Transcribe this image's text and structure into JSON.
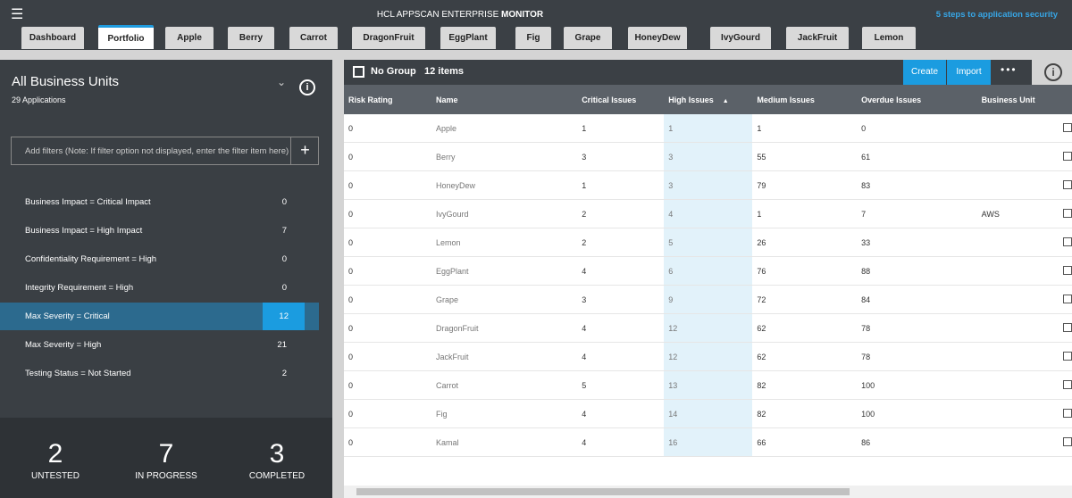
{
  "header": {
    "title": "HCL APPSCAN ENTERPRISE",
    "title_bold": "MONITOR",
    "link": "5 steps to application security"
  },
  "tabs": [
    "Dashboard",
    "Portfolio",
    "Apple",
    "Berry",
    "Carrot",
    "DragonFruit",
    "EggPlant",
    "Fig",
    "Grape",
    "HoneyDew",
    "IvyGourd",
    "JackFruit",
    "Lemon"
  ],
  "sidebar": {
    "title": "All Business Units",
    "subtitle": "29 Applications",
    "filter_placeholder": "Add filters (Note: If filter option not displayed, enter the filter item here)",
    "filters": [
      {
        "label": "Business Impact = Critical Impact",
        "count": 0
      },
      {
        "label": "Business Impact = High Impact",
        "count": 7
      },
      {
        "label": "Confidentiality Requirement = High",
        "count": 0
      },
      {
        "label": "Integrity Requirement = High",
        "count": 0
      },
      {
        "label": "Max Severity = Critical",
        "count": 12
      },
      {
        "label": "Max Severity = High",
        "count": 21
      },
      {
        "label": "Testing Status = Not Started",
        "count": 2
      }
    ],
    "summary": [
      {
        "value": 2,
        "label": "UNTESTED"
      },
      {
        "value": 7,
        "label": "IN PROGRESS"
      },
      {
        "value": 3,
        "label": "COMPLETED"
      }
    ]
  },
  "toolbar": {
    "group": "No Group",
    "count": "12 items",
    "buttons": [
      "Create",
      "Import"
    ]
  },
  "table": {
    "columns": [
      "Risk Rating",
      "Name",
      "Critical Issues",
      "High Issues",
      "Medium Issues",
      "Overdue Issues",
      "Business Unit"
    ],
    "rows": [
      [
        0,
        "Apple",
        1,
        1,
        1,
        0,
        null
      ],
      [
        0,
        "Berry",
        3,
        3,
        55,
        61,
        null
      ],
      [
        0,
        "HoneyDew",
        1,
        3,
        79,
        83,
        null
      ],
      [
        0,
        "IvyGourd",
        2,
        4,
        1,
        7,
        "AWS"
      ],
      [
        0,
        "Lemon",
        2,
        5,
        26,
        33,
        null
      ],
      [
        0,
        "EggPlant",
        4,
        6,
        76,
        88,
        null
      ],
      [
        0,
        "Grape",
        3,
        9,
        72,
        84,
        null
      ],
      [
        0,
        "DragonFruit",
        4,
        12,
        62,
        78,
        null
      ],
      [
        0,
        "JackFruit",
        4,
        12,
        62,
        78,
        null
      ],
      [
        0,
        "Carrot",
        5,
        13,
        82,
        100,
        null
      ],
      [
        0,
        "Fig",
        4,
        14,
        82,
        100,
        null
      ],
      [
        0,
        "Kamal",
        4,
        16,
        66,
        86,
        null
      ]
    ]
  }
}
